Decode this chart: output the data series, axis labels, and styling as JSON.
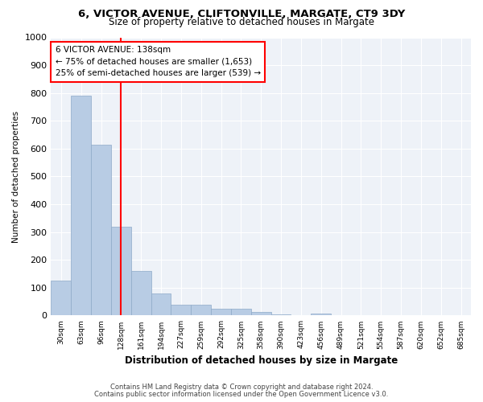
{
  "title1": "6, VICTOR AVENUE, CLIFTONVILLE, MARGATE, CT9 3DY",
  "title2": "Size of property relative to detached houses in Margate",
  "xlabel": "Distribution of detached houses by size in Margate",
  "ylabel": "Number of detached properties",
  "categories": [
    "30sqm",
    "63sqm",
    "96sqm",
    "128sqm",
    "161sqm",
    "194sqm",
    "227sqm",
    "259sqm",
    "292sqm",
    "325sqm",
    "358sqm",
    "390sqm",
    "423sqm",
    "456sqm",
    "489sqm",
    "521sqm",
    "554sqm",
    "587sqm",
    "620sqm",
    "652sqm",
    "685sqm"
  ],
  "values": [
    125,
    790,
    615,
    320,
    160,
    80,
    40,
    38,
    25,
    23,
    14,
    5,
    0,
    8,
    0,
    0,
    0,
    0,
    0,
    0,
    0
  ],
  "bar_color": "#b8cce4",
  "bar_edge_color": "#8eaac8",
  "red_line_index": 3,
  "annotation_line1": "6 VICTOR AVENUE: 138sqm",
  "annotation_line2": "← 75% of detached houses are smaller (1,653)",
  "annotation_line3": "25% of semi-detached houses are larger (539) →",
  "ylim": [
    0,
    1000
  ],
  "yticks": [
    0,
    100,
    200,
    300,
    400,
    500,
    600,
    700,
    800,
    900,
    1000
  ],
  "footnote1": "Contains HM Land Registry data © Crown copyright and database right 2024.",
  "footnote2": "Contains public sector information licensed under the Open Government Licence v3.0.",
  "background_color": "#ffffff",
  "plot_bg_color": "#eef2f8"
}
